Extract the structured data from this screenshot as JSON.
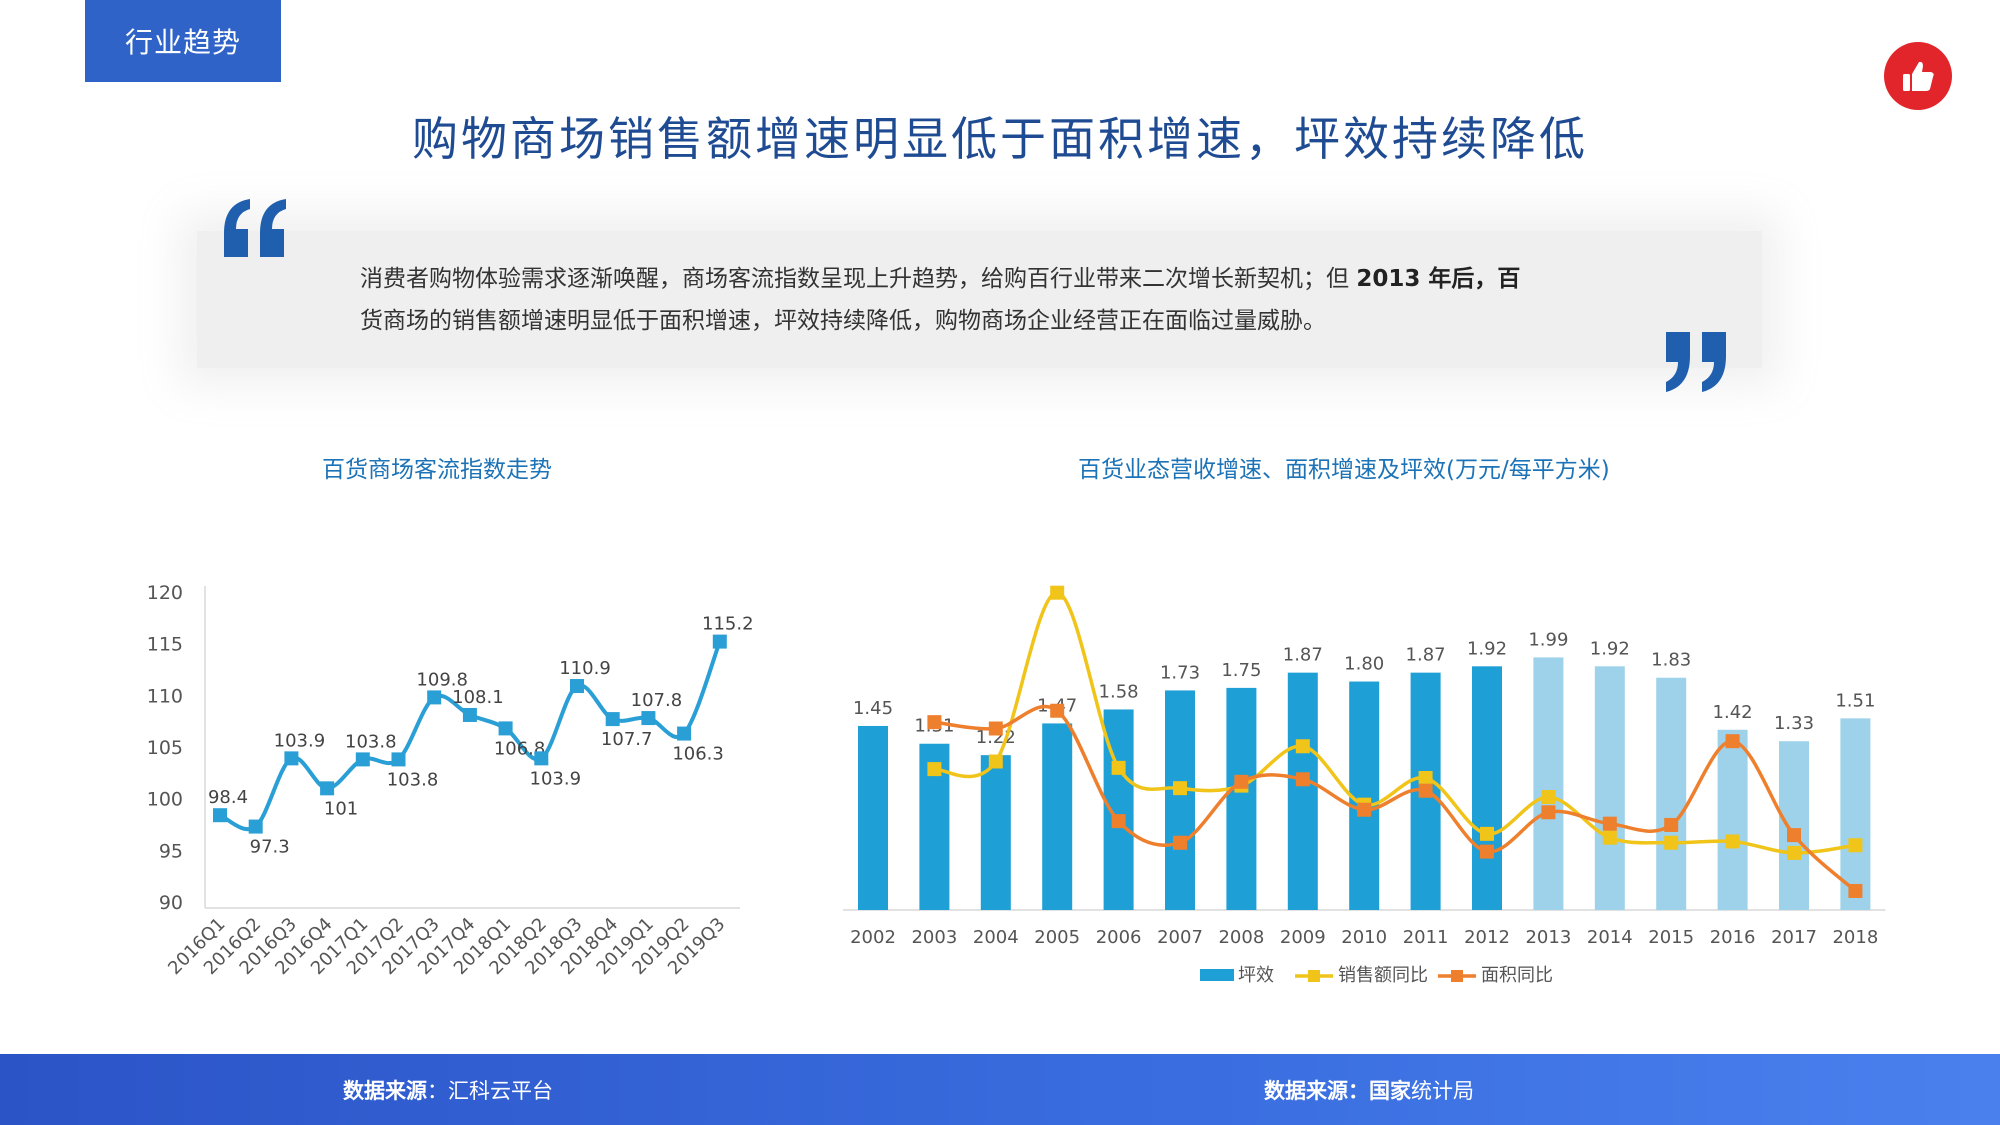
{
  "header": {
    "section_tag": "行业趋势",
    "title": "购物商场销售额增速明显低于面积增速，坪效持续降低"
  },
  "quote": {
    "line1_a": "消费者购物体验需求逐渐唤醒，商场客流指数呈现上升趋势，给购百行业带来二次增长新契机；但",
    "line1_b": "2013 年后，百",
    "line2": "货商场的销售额增速明显低于面积增速，坪效持续降低，购物商场企业经营正在面临过量威胁。"
  },
  "colors": {
    "accent": "#2f63c8",
    "title": "#1f4b93",
    "bar_dark": "#1e9fd6",
    "bar_light": "#9ed2ea",
    "sales_line": "#f0c419",
    "area_line": "#ee7f2d",
    "footer": "#3a6ee0",
    "thumb": "#e1252a"
  },
  "icons": {
    "top_right": "thumbs-up-icon"
  },
  "chart_data": [
    {
      "type": "line",
      "title": "百货商场客流指数走势",
      "categories": [
        "2016Q1",
        "2016Q2",
        "2016Q3",
        "2016Q4",
        "2017Q1",
        "2017Q2",
        "2017Q3",
        "2017Q4",
        "2018Q1",
        "2018Q2",
        "2018Q3",
        "2018Q4",
        "2019Q1",
        "2019Q2",
        "2019Q3"
      ],
      "values": [
        98.4,
        97.3,
        103.9,
        101,
        103.8,
        103.8,
        109.8,
        108.1,
        106.8,
        103.9,
        110.9,
        107.7,
        107.8,
        106.3,
        115.2
      ],
      "ylim": [
        90,
        120
      ],
      "yticks": [
        90,
        95,
        100,
        105,
        110,
        115,
        120
      ],
      "grid": false,
      "series_color": "#2a9fd6"
    },
    {
      "type": "bar",
      "title": "百货业态营收增速、面积增速及坪效(万元/每平方米)",
      "categories": [
        "2002",
        "2003",
        "2004",
        "2005",
        "2006",
        "2007",
        "2008",
        "2009",
        "2010",
        "2011",
        "2012",
        "2013",
        "2014",
        "2015",
        "2016",
        "2017",
        "2018"
      ],
      "series": [
        {
          "name": "坪效",
          "values": [
            1.45,
            1.31,
            1.22,
            1.47,
            1.58,
            1.73,
            1.75,
            1.87,
            1.8,
            1.87,
            1.92,
            1.99,
            1.92,
            1.83,
            1.42,
            1.33,
            1.51
          ]
        },
        {
          "name": "销售额同比",
          "values": [
            null,
            1.11,
            1.17,
            2.5,
            1.12,
            0.96,
            0.98,
            1.29,
            0.83,
            1.04,
            0.6,
            0.89,
            0.57,
            0.53,
            0.54,
            0.45,
            0.51
          ]
        },
        {
          "name": "面积同比",
          "values": [
            null,
            1.48,
            1.43,
            1.57,
            0.7,
            0.53,
            1.01,
            1.03,
            0.79,
            0.94,
            0.46,
            0.77,
            0.68,
            0.67,
            1.33,
            0.59,
            0.15
          ]
        }
      ],
      "ylim": [
        0,
        2.6
      ],
      "legend": "bottom",
      "grid": false
    }
  ],
  "footer": {
    "left_key": "数据来源",
    "left_value": "：汇科云平台",
    "right_key": "数据来源：国家",
    "right_value": "统计局"
  }
}
